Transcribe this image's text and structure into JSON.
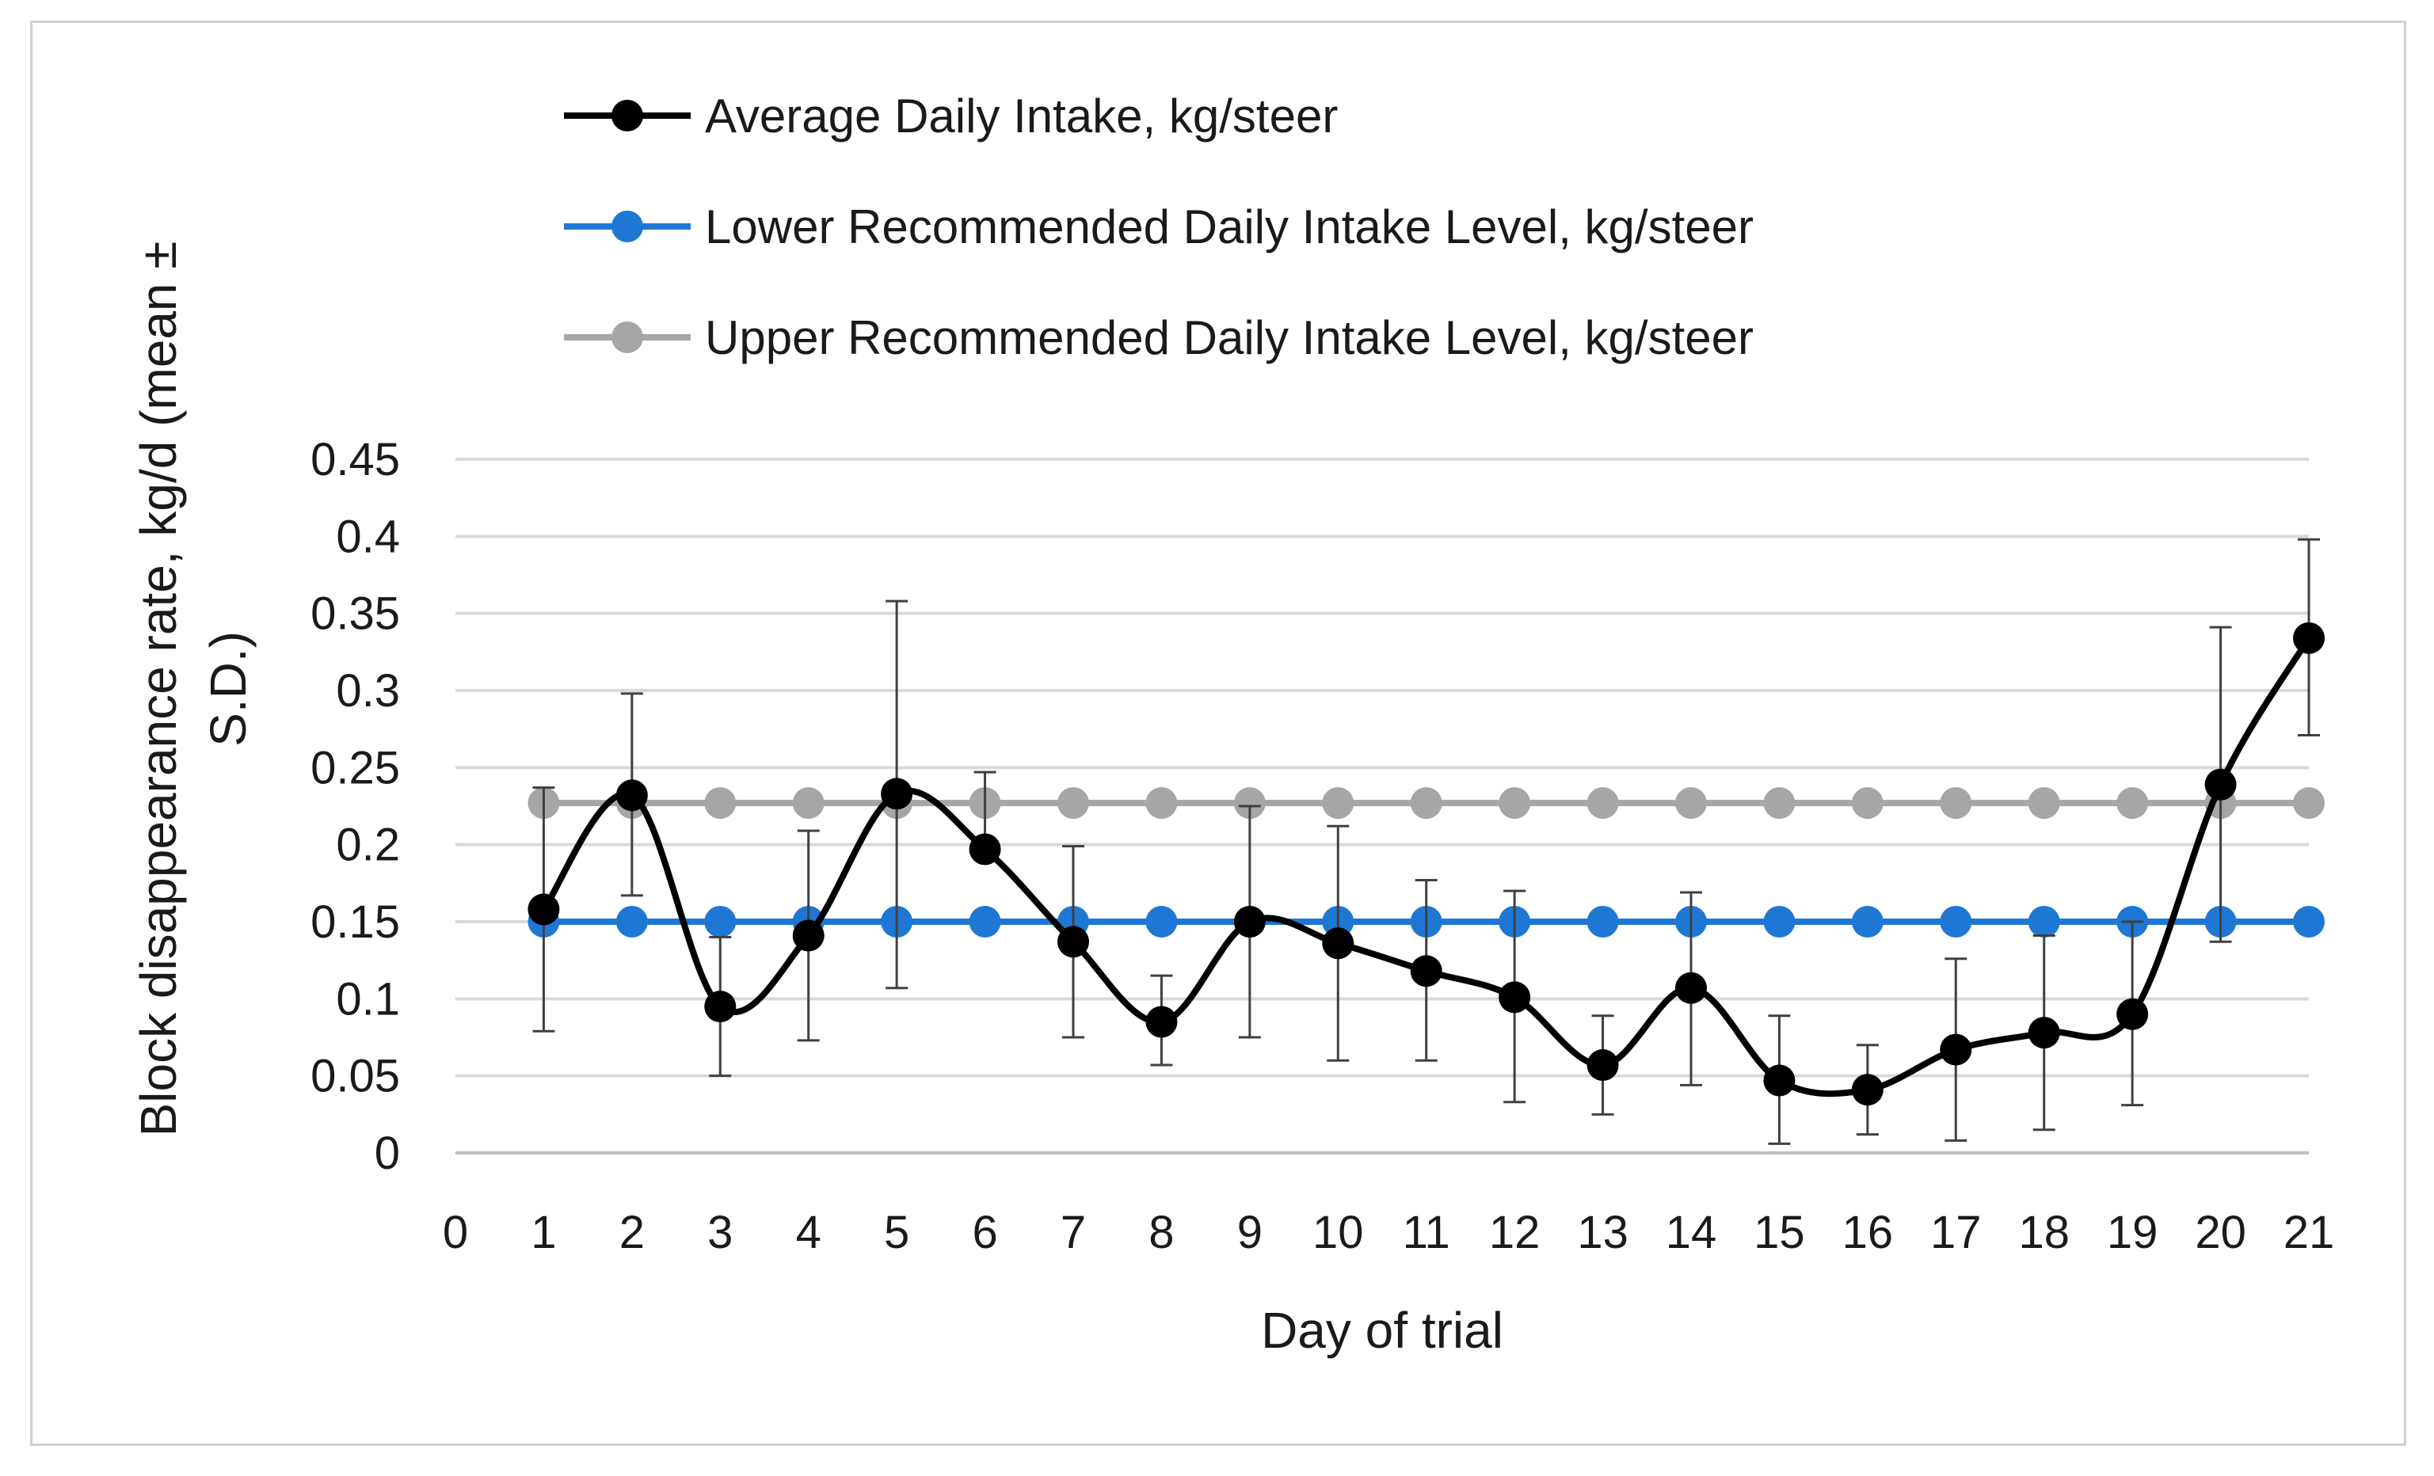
{
  "chart_data": {
    "type": "line",
    "title": "",
    "xlabel": "Day of trial",
    "ylabel_lines": [
      "Block disappearance rate,  kg/d (mean ±",
      "S.D.)"
    ],
    "xlim": [
      0,
      21
    ],
    "ylim": [
      0,
      0.45
    ],
    "x_ticks": [
      "0",
      "1",
      "2",
      "3",
      "4",
      "5",
      "6",
      "7",
      "8",
      "9",
      "10",
      "11",
      "12",
      "13",
      "14",
      "15",
      "16",
      "17",
      "18",
      "19",
      "20",
      "21"
    ],
    "y_ticks": [
      "0",
      "0.05",
      "0.1",
      "0.15",
      "0.2",
      "0.25",
      "0.3",
      "0.35",
      "0.4",
      "0.45"
    ],
    "y_tick_values": [
      0,
      0.05,
      0.1,
      0.15,
      0.2,
      0.25,
      0.3,
      0.35,
      0.4,
      0.45
    ],
    "grid": "horizontal",
    "legend_position": "top",
    "x": [
      1,
      2,
      3,
      4,
      5,
      6,
      7,
      8,
      9,
      10,
      11,
      12,
      13,
      14,
      15,
      16,
      17,
      18,
      19,
      20,
      21
    ],
    "series": [
      {
        "name": "Average Daily Intake, kg/steer",
        "color": "#000000",
        "smooth": true,
        "values": [
          0.158,
          0.232,
          0.095,
          0.141,
          0.233,
          0.197,
          0.137,
          0.085,
          0.15,
          0.136,
          0.118,
          0.101,
          0.057,
          0.107,
          0.047,
          0.041,
          0.067,
          0.078,
          0.09,
          0.239,
          0.334
        ],
        "error_low": [
          0.079,
          0.167,
          0.05,
          0.073,
          0.107,
          0.197,
          0.075,
          0.057,
          0.075,
          0.06,
          0.06,
          0.033,
          0.025,
          0.044,
          0.006,
          0.012,
          0.008,
          0.015,
          0.031,
          0.137,
          0.271
        ],
        "error_high": [
          0.237,
          0.298,
          0.14,
          0.209,
          0.358,
          0.247,
          0.199,
          0.115,
          0.225,
          0.212,
          0.177,
          0.17,
          0.089,
          0.169,
          0.089,
          0.07,
          0.126,
          0.141,
          0.15,
          0.341,
          0.398
        ]
      },
      {
        "name": "Lower Recommended Daily Intake Level, kg/steer",
        "color": "#1f77d4",
        "smooth": false,
        "values": [
          0.15,
          0.15,
          0.15,
          0.15,
          0.15,
          0.15,
          0.15,
          0.15,
          0.15,
          0.15,
          0.15,
          0.15,
          0.15,
          0.15,
          0.15,
          0.15,
          0.15,
          0.15,
          0.15,
          0.15,
          0.15
        ]
      },
      {
        "name": "Upper Recommended Daily Intake Level, kg/steer",
        "color": "#a6a6a6",
        "smooth": false,
        "values": [
          0.227,
          0.227,
          0.227,
          0.227,
          0.227,
          0.227,
          0.227,
          0.227,
          0.227,
          0.227,
          0.227,
          0.227,
          0.227,
          0.227,
          0.227,
          0.227,
          0.227,
          0.227,
          0.227,
          0.227,
          0.227
        ]
      }
    ]
  }
}
